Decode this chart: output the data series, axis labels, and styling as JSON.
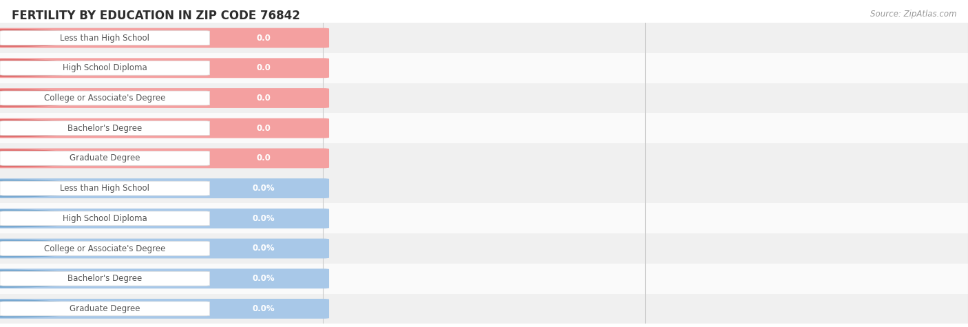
{
  "title": "FERTILITY BY EDUCATION IN ZIP CODE 76842",
  "source": "Source: ZipAtlas.com",
  "categories": [
    "Less than High School",
    "High School Diploma",
    "College or Associate's Degree",
    "Bachelor's Degree",
    "Graduate Degree"
  ],
  "top_values": [
    0.0,
    0.0,
    0.0,
    0.0,
    0.0
  ],
  "bottom_values": [
    0.0,
    0.0,
    0.0,
    0.0,
    0.0
  ],
  "top_bar_color": "#f4a0a0",
  "top_bar_dark": "#e07070",
  "bottom_bar_color": "#a8c8e8",
  "bottom_bar_dark": "#78a8d0",
  "row_bg_even": "#f0f0f0",
  "row_bg_odd": "#fafafa",
  "grid_color": "#cccccc",
  "label_bg": "#ffffff",
  "label_border": "#dddddd",
  "text_dark": "#555555",
  "text_value": "#ffffff",
  "tick_color": "#888888",
  "background_color": "#ffffff",
  "title_fontsize": 12,
  "source_fontsize": 8.5,
  "cat_fontsize": 8.5,
  "val_fontsize": 8.5,
  "tick_fontsize": 9
}
